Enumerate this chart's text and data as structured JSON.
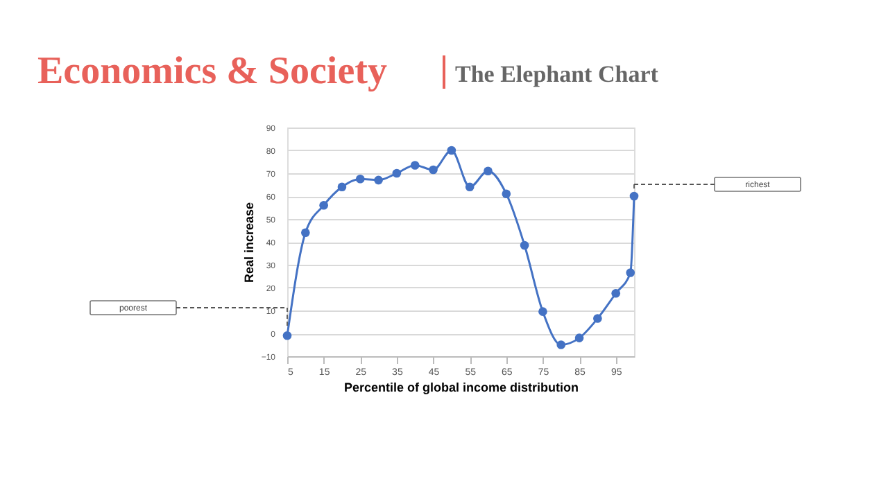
{
  "chart_data": {
    "type": "line",
    "title": "Economics & Society",
    "subtitle": "The Elephant Chart",
    "xlabel": "Percentile of global income distribution",
    "ylabel": "Real increase",
    "x": [
      5,
      10,
      15,
      20,
      25,
      30,
      35,
      40,
      45,
      50,
      55,
      60,
      65,
      70,
      75,
      80,
      85,
      90,
      95,
      99,
      100
    ],
    "series": [
      {
        "color": "#4472c4",
        "values": [
          -1,
          44,
          56,
          64,
          67.5,
          67,
          70,
          73.5,
          71.5,
          80,
          64,
          71,
          61,
          38.5,
          9.5,
          -5,
          -2,
          6.5,
          17.5,
          26.5,
          60
        ]
      }
    ],
    "xlim": [
      5,
      100
    ],
    "xticks": [
      5,
      15,
      25,
      35,
      45,
      55,
      65,
      75,
      85,
      95
    ],
    "ylim": [
      -10,
      90
    ],
    "yticks": [
      -10,
      0,
      10,
      20,
      30,
      40,
      50,
      60,
      70,
      80,
      90
    ],
    "grid": "y",
    "marker": "circle",
    "line_style": "solid",
    "annotations": [
      "poorest",
      "richest"
    ]
  }
}
